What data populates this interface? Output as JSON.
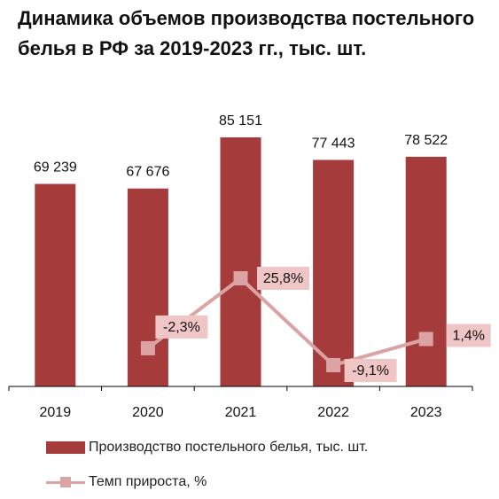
{
  "title": "Динамика объемов производства постельного белья в РФ за 2019-2023 гг., тыс. шт.",
  "colors": {
    "bars": "#a63b3b",
    "growth_line": "#dba3a3",
    "label_box": "#f0c5c5",
    "axis": "#000000"
  },
  "chart_data": {
    "type": "bar",
    "title": "Динамика объемов производства постельного белья в РФ за 2019-2023 гг., тыс. шт.",
    "categories": [
      "2019",
      "2020",
      "2021",
      "2022",
      "2023"
    ],
    "series": [
      {
        "name": "Производство постельного белья, тыс. шт.",
        "type": "bar",
        "values": [
          69239,
          67676,
          85151,
          77443,
          78522
        ],
        "labels": [
          "69 239",
          "67 676",
          "85 151",
          "77 443",
          "78 522"
        ]
      },
      {
        "name": "Темп прироста, %",
        "type": "line",
        "secondary_axis": true,
        "values": [
          null,
          -2.3,
          25.8,
          -9.1,
          1.4
        ],
        "labels": [
          "",
          "-2,3%",
          "25,8%",
          "-9,1%",
          "1,4%"
        ]
      }
    ],
    "ylim": [
      0,
      100000
    ],
    "y2lim": [
      -20,
      60
    ],
    "legend_position": "bottom",
    "grid": false
  },
  "legend": {
    "bar_label": "Производство постельного белья, тыс. шт.",
    "line_label": "Темп прироста, %"
  }
}
